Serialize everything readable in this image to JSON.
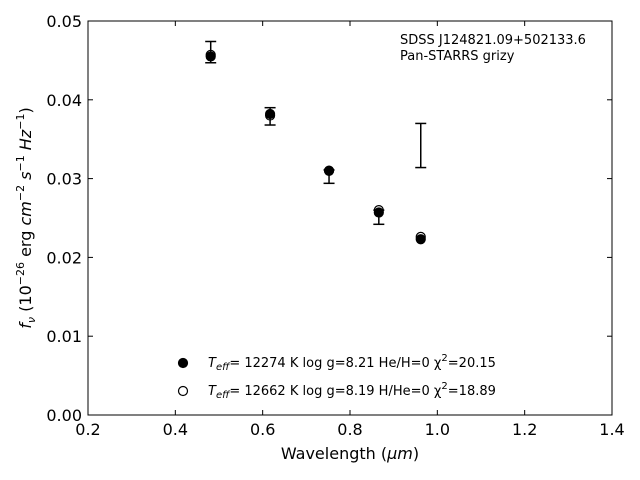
{
  "chart_data": {
    "type": "scatter",
    "annotation": [
      "SDSS J124821.09+502133.6",
      "Pan-STARRS grizy"
    ],
    "xlabel_text": "Wavelength (",
    "xlabel_unit": "μm",
    "xlabel_close": ")",
    "ylabel": "f_ν (10^-26 erg cm^-2 s^-1 Hz^-1)",
    "xlim": [
      0.2,
      1.4
    ],
    "ylim": [
      0.0,
      0.05
    ],
    "xticks": [
      "0.2",
      "0.4",
      "0.6",
      "0.8",
      "1.0",
      "1.2",
      "1.4"
    ],
    "xtick_values": [
      0.2,
      0.4,
      0.6,
      0.8,
      1.0,
      1.2,
      1.4
    ],
    "yticks": [
      "0.00",
      "0.01",
      "0.02",
      "0.03",
      "0.04",
      "0.05"
    ],
    "ytick_values": [
      0.0,
      0.01,
      0.02,
      0.03,
      0.04,
      0.05
    ],
    "observed": [
      {
        "x": 0.481,
        "y": 0.046,
        "err_low": 0.0447,
        "err_high": 0.0474
      },
      {
        "x": 0.617,
        "y": 0.0379,
        "err_low": 0.0368,
        "err_high": 0.039
      },
      {
        "x": 0.752,
        "y": 0.0302,
        "err_low": 0.0294,
        "err_high": 0.0311
      },
      {
        "x": 0.866,
        "y": 0.0248,
        "err_low": 0.0242,
        "err_high": 0.026
      },
      {
        "x": 0.962,
        "y": 0.0342,
        "err_low": 0.0314,
        "err_high": 0.037
      }
    ],
    "series": [
      {
        "label_name": "T",
        "label_sub": "eff",
        "label_rest": "= 12274 K  log g=8.21  He/H=0  χ",
        "label_sup": "2",
        "label_end": "=20.15",
        "marker": "filled",
        "x": [
          0.481,
          0.617,
          0.752,
          0.866,
          0.962
        ],
        "y": [
          0.0455,
          0.0382,
          0.031,
          0.0257,
          0.0223
        ]
      },
      {
        "label_name": "T",
        "label_sub": "eff",
        "label_rest": "= 12662 K  log g=8.19  H/He=0  χ",
        "label_sup": "2",
        "label_end": "=18.89",
        "marker": "open",
        "x": [
          0.481,
          0.617,
          0.752,
          0.866,
          0.962
        ],
        "y": [
          0.0457,
          0.038,
          0.031,
          0.026,
          0.0226
        ]
      }
    ]
  }
}
